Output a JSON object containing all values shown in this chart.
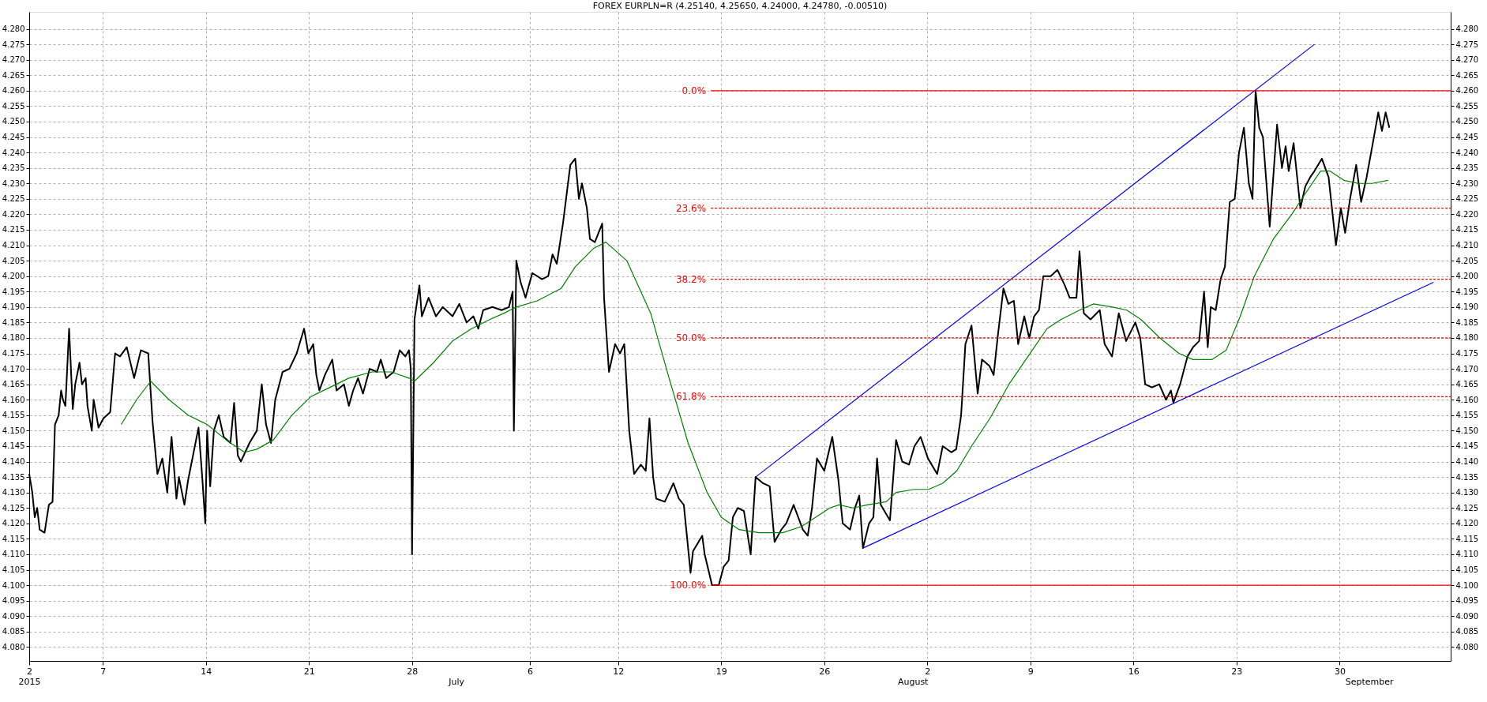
{
  "chart_data": {
    "type": "line",
    "title": "FOREX EURPLN=R (4.25140, 4.25650, 4.24000, 4.24780, -0.00510)",
    "xlim": [
      "2015-06-02T00:00",
      "2015-09-06T13:00"
    ],
    "ylim": [
      4.0755,
      4.2855
    ],
    "y2lim": [
      4.0755,
      4.2855
    ],
    "x2lim": [
      "2015-06-02T00:00",
      "2015-09-06T13:00"
    ],
    "xticks": [
      {
        "value": "2015-06-02",
        "label": "2"
      },
      {
        "value": "2015-06-07",
        "label": "7"
      },
      {
        "value": "2015-06-14",
        "label": "14"
      },
      {
        "value": "2015-06-21",
        "label": "21"
      },
      {
        "value": "2015-06-28",
        "label": "28"
      },
      {
        "value": "2015-07-06",
        "label": "6"
      },
      {
        "value": "2015-07-12",
        "label": "12"
      },
      {
        "value": "2015-07-19",
        "label": "19"
      },
      {
        "value": "2015-07-26",
        "label": "26"
      },
      {
        "value": "2015-08-02",
        "label": "2"
      },
      {
        "value": "2015-08-09",
        "label": "9"
      },
      {
        "value": "2015-08-16",
        "label": "16"
      },
      {
        "value": "2015-08-23",
        "label": "23"
      },
      {
        "value": "2015-08-30",
        "label": "30"
      }
    ],
    "x2ticks": [
      {
        "value": "2015-06-02",
        "label": "2015"
      },
      {
        "value": "2015-07-01",
        "label": "July"
      },
      {
        "value": "2015-08-01",
        "label": "August"
      },
      {
        "value": "2015-09-01",
        "label": "September"
      }
    ],
    "yticks": [
      {
        "value": 4.08,
        "label": "4.080"
      },
      {
        "value": 4.085,
        "label": "4.085"
      },
      {
        "value": 4.09,
        "label": "4.090"
      },
      {
        "value": 4.095,
        "label": "4.095"
      },
      {
        "value": 4.1,
        "label": "4.100"
      },
      {
        "value": 4.105,
        "label": "4.105"
      },
      {
        "value": 4.11,
        "label": "4.110"
      },
      {
        "value": 4.115,
        "label": "4.115"
      },
      {
        "value": 4.12,
        "label": "4.120"
      },
      {
        "value": 4.125,
        "label": "4.125"
      },
      {
        "value": 4.13,
        "label": "4.130"
      },
      {
        "value": 4.135,
        "label": "4.135"
      },
      {
        "value": 4.14,
        "label": "4.140"
      },
      {
        "value": 4.145,
        "label": "4.145"
      },
      {
        "value": 4.15,
        "label": "4.150"
      },
      {
        "value": 4.155,
        "label": "4.155"
      },
      {
        "value": 4.16,
        "label": "4.160"
      },
      {
        "value": 4.165,
        "label": "4.165"
      },
      {
        "value": 4.17,
        "label": "4.170"
      },
      {
        "value": 4.175,
        "label": "4.175"
      },
      {
        "value": 4.18,
        "label": "4.180"
      },
      {
        "value": 4.185,
        "label": "4.185"
      },
      {
        "value": 4.19,
        "label": "4.190"
      },
      {
        "value": 4.195,
        "label": "4.195"
      },
      {
        "value": 4.2,
        "label": "4.200"
      },
      {
        "value": 4.205,
        "label": "4.205"
      },
      {
        "value": 4.21,
        "label": "4.210"
      },
      {
        "value": 4.215,
        "label": "4.215"
      },
      {
        "value": 4.22,
        "label": "4.220"
      },
      {
        "value": 4.225,
        "label": "4.225"
      },
      {
        "value": 4.23,
        "label": "4.230"
      },
      {
        "value": 4.235,
        "label": "4.235"
      },
      {
        "value": 4.24,
        "label": "4.240"
      },
      {
        "value": 4.245,
        "label": "4.245"
      },
      {
        "value": 4.25,
        "label": "4.250"
      },
      {
        "value": 4.255,
        "label": "4.255"
      },
      {
        "value": 4.26,
        "label": "4.260"
      },
      {
        "value": 4.265,
        "label": "4.265"
      },
      {
        "value": 4.27,
        "label": "4.270"
      },
      {
        "value": 4.275,
        "label": "4.275"
      },
      {
        "value": 4.28,
        "label": "4.280"
      }
    ],
    "y2ticks": [
      {
        "value": 4.08,
        "label": "4.080"
      },
      {
        "value": 4.085,
        "label": "4.085"
      },
      {
        "value": 4.09,
        "label": "4.090"
      },
      {
        "value": 4.095,
        "label": "4.095"
      },
      {
        "value": 4.1,
        "label": "4.100"
      },
      {
        "value": 4.105,
        "label": "4.105"
      },
      {
        "value": 4.11,
        "label": "4.110"
      },
      {
        "value": 4.115,
        "label": "4.115"
      },
      {
        "value": 4.12,
        "label": "4.120"
      },
      {
        "value": 4.125,
        "label": "4.125"
      },
      {
        "value": 4.13,
        "label": "4.130"
      },
      {
        "value": 4.135,
        "label": "4.135"
      },
      {
        "value": 4.14,
        "label": "4.140"
      },
      {
        "value": 4.145,
        "label": "4.145"
      },
      {
        "value": 4.15,
        "label": "4.150"
      },
      {
        "value": 4.155,
        "label": "4.155"
      },
      {
        "value": 4.16,
        "label": "4.160"
      },
      {
        "value": 4.165,
        "label": "4.165"
      },
      {
        "value": 4.17,
        "label": "4.170"
      },
      {
        "value": 4.175,
        "label": "4.175"
      },
      {
        "value": 4.18,
        "label": "4.180"
      },
      {
        "value": 4.185,
        "label": "4.185"
      },
      {
        "value": 4.19,
        "label": "4.190"
      },
      {
        "value": 4.195,
        "label": "4.195"
      },
      {
        "value": 4.2,
        "label": "4.200"
      },
      {
        "value": 4.205,
        "label": "4.205"
      },
      {
        "value": 4.21,
        "label": "4.210"
      },
      {
        "value": 4.215,
        "label": "4.215"
      },
      {
        "value": 4.22,
        "label": "4.220"
      },
      {
        "value": 4.225,
        "label": "4.225"
      },
      {
        "value": 4.23,
        "label": "4.230"
      },
      {
        "value": 4.235,
        "label": "4.235"
      },
      {
        "value": 4.24,
        "label": "4.240"
      },
      {
        "value": 4.245,
        "label": "4.245"
      },
      {
        "value": 4.25,
        "label": "4.250"
      },
      {
        "value": 4.255,
        "label": "4.255"
      },
      {
        "value": 4.26,
        "label": "4.260"
      },
      {
        "value": 4.265,
        "label": "4.265"
      },
      {
        "value": 4.27,
        "label": "4.270"
      },
      {
        "value": 4.275,
        "label": "4.275"
      },
      {
        "value": 4.28,
        "label": "4.280"
      }
    ],
    "grid": true,
    "marker": "none",
    "line_style": "solid",
    "series": [
      {
        "color": "#000000",
        "x": [
          "2015-06-02T00:00",
          "2015-06-02T05:00",
          "2015-06-02T09:00",
          "2015-06-02T13:00",
          "2015-06-02T17:00",
          "2015-06-03T01:00",
          "2015-06-03T08:00",
          "2015-06-03T14:00",
          "2015-06-03T18:00",
          "2015-06-04T00:00",
          "2015-06-04T04:00",
          "2015-06-04T07:00",
          "2015-06-04T11:00",
          "2015-06-04T17:00",
          "2015-06-04T23:00",
          "2015-06-05T03:00",
          "2015-06-05T10:00",
          "2015-06-05T14:00",
          "2015-06-05T20:00",
          "2015-06-05T23:00",
          "2015-06-06T06:00",
          "2015-06-06T09:00",
          "2015-06-06T17:00",
          "2015-06-07T01:00",
          "2015-06-07T12:00",
          "2015-06-07T20:00",
          "2015-06-08T04:00",
          "2015-06-08T15:00",
          "2015-06-09T03:00",
          "2015-06-09T14:00",
          "2015-06-10T02:00",
          "2015-06-10T09:00",
          "2015-06-10T17:00",
          "2015-06-11T01:00",
          "2015-06-11T09:00",
          "2015-06-11T16:00",
          "2015-06-12T00:00",
          "2015-06-12T04:00",
          "2015-06-12T13:00",
          "2015-06-12T19:00",
          "2015-06-13T03:00",
          "2015-06-13T12:00",
          "2015-06-13T18:00",
          "2015-06-13T23:00",
          "2015-06-14T02:00",
          "2015-06-14T07:00",
          "2015-06-14T13:00",
          "2015-06-14T21:00",
          "2015-06-15T05:00",
          "2015-06-15T16:00",
          "2015-06-15T22:00",
          "2015-06-16T04:00",
          "2015-06-16T09:00",
          "2015-06-16T23:00",
          "2015-06-17T11:00",
          "2015-06-17T19:00",
          "2015-06-18T02:00",
          "2015-06-18T10:00",
          "2015-06-18T17:00",
          "2015-06-19T05:00",
          "2015-06-19T16:00",
          "2015-06-20T04:00",
          "2015-06-20T16:00",
          "2015-06-20T23:00",
          "2015-06-21T07:00",
          "2015-06-21T12:00",
          "2015-06-21T17:00",
          "2015-06-22T02:00",
          "2015-06-22T14:00",
          "2015-06-22T21:00",
          "2015-06-23T09:00",
          "2015-06-23T17:00",
          "2015-06-24T00:00",
          "2015-06-24T08:00",
          "2015-06-24T16:00",
          "2015-06-25T03:00",
          "2015-06-25T15:00",
          "2015-06-25T21:00",
          "2015-06-26T06:00",
          "2015-06-26T18:00",
          "2015-06-27T04:00",
          "2015-06-27T13:00",
          "2015-06-27T19:00",
          "2015-06-27T22:00",
          "2015-06-28T00:00",
          "2015-06-28T04:00",
          "2015-06-28T12:00",
          "2015-06-28T16:00",
          "2015-06-29T03:00",
          "2015-06-29T15:00",
          "2015-06-30T02:00",
          "2015-06-30T18:00",
          "2015-07-01T05:00",
          "2015-07-01T17:00",
          "2015-07-02T04:00",
          "2015-07-02T12:00",
          "2015-07-02T20:00",
          "2015-07-03T11:00",
          "2015-07-04T02:00",
          "2015-07-04T14:00",
          "2015-07-04T20:00",
          "2015-07-04T22:00",
          "2015-07-05T02:00",
          "2015-07-05T09:00",
          "2015-07-05T17:00",
          "2015-07-06T04:00",
          "2015-07-06T20:00",
          "2015-07-07T06:00",
          "2015-07-07T13:00",
          "2015-07-07T20:00",
          "2015-07-08T06:00",
          "2015-07-08T18:00",
          "2015-07-09T02:00",
          "2015-07-09T08:00",
          "2015-07-09T13:00",
          "2015-07-09T21:00",
          "2015-07-10T02:00",
          "2015-07-10T10:00",
          "2015-07-10T16:00",
          "2015-07-10T22:00",
          "2015-07-11T01:00",
          "2015-07-11T09:00",
          "2015-07-11T19:00",
          "2015-07-12T03:00",
          "2015-07-12T10:00",
          "2015-07-12T18:00",
          "2015-07-13T02:00",
          "2015-07-13T13:00",
          "2015-07-13T21:00",
          "2015-07-14T03:00",
          "2015-07-14T09:00",
          "2015-07-14T14:00",
          "2015-07-15T04:00",
          "2015-07-15T18:00",
          "2015-07-16T03:00",
          "2015-07-16T11:00",
          "2015-07-16T22:00",
          "2015-07-17T02:00",
          "2015-07-17T17:00",
          "2015-07-17T21:00",
          "2015-07-18T09:00",
          "2015-07-18T20:00",
          "2015-07-19T04:00",
          "2015-07-19T12:00",
          "2015-07-19T19:00",
          "2015-07-20T03:00",
          "2015-07-20T13:00",
          "2015-07-21T00:00",
          "2015-07-21T08:00",
          "2015-07-21T20:00",
          "2015-07-22T07:00",
          "2015-07-22T15:00",
          "2015-07-23T02:00",
          "2015-07-23T10:00",
          "2015-07-23T22:00",
          "2015-07-24T13:00",
          "2015-07-24T21:00",
          "2015-07-25T04:00",
          "2015-07-25T12:00",
          "2015-07-26T00:00",
          "2015-07-26T13:00",
          "2015-07-26T23:00",
          "2015-07-27T06:00",
          "2015-07-27T18:00",
          "2015-07-28T02:00",
          "2015-07-28T09:00",
          "2015-07-28T15:00",
          "2015-07-29T01:00",
          "2015-07-29T08:00",
          "2015-07-29T14:00",
          "2015-07-29T20:00",
          "2015-07-30T11:00",
          "2015-07-30T21:00",
          "2015-07-31T07:00",
          "2015-07-31T18:00",
          "2015-08-01T03:00",
          "2015-08-01T13:00",
          "2015-08-02T01:00",
          "2015-08-02T16:00",
          "2015-08-03T01:00",
          "2015-08-03T15:00",
          "2015-08-03T23:00",
          "2015-08-04T07:00",
          "2015-08-04T14:00",
          "2015-08-05T00:00",
          "2015-08-05T10:00",
          "2015-08-05T17:00",
          "2015-08-06T05:00",
          "2015-08-06T12:00",
          "2015-08-06T19:00",
          "2015-08-07T04:00",
          "2015-08-07T12:00",
          "2015-08-07T21:00",
          "2015-08-08T04:00",
          "2015-08-08T14:00",
          "2015-08-08T22:00",
          "2015-08-09T06:00",
          "2015-08-09T14:00",
          "2015-08-09T21:00",
          "2015-08-10T09:00",
          "2015-08-10T20:00",
          "2015-08-11T08:00",
          "2015-08-11T16:00",
          "2015-08-12T03:00",
          "2015-08-12T08:00",
          "2015-08-12T15:00",
          "2015-08-13T02:00",
          "2015-08-13T17:00",
          "2015-08-14T01:00",
          "2015-08-14T13:00",
          "2015-08-15T00:00",
          "2015-08-15T12:00",
          "2015-08-16T03:00",
          "2015-08-16T11:00",
          "2015-08-16T19:00",
          "2015-08-17T06:00",
          "2015-08-17T18:00",
          "2015-08-18T05:00",
          "2015-08-18T13:00",
          "2015-08-18T17:00",
          "2015-08-19T04:00",
          "2015-08-19T16:00",
          "2015-08-20T01:00",
          "2015-08-20T11:00",
          "2015-08-20T19:00",
          "2015-08-21T01:00",
          "2015-08-21T06:00",
          "2015-08-21T14:00",
          "2015-08-21T22:00",
          "2015-08-22T05:00",
          "2015-08-22T13:00",
          "2015-08-22T21:00",
          "2015-08-23T04:00",
          "2015-08-23T12:00",
          "2015-08-23T20:00",
          "2015-08-24T02:00",
          "2015-08-24T07:00",
          "2015-08-24T13:00",
          "2015-08-24T19:00",
          "2015-08-25T06:00",
          "2015-08-25T18:00",
          "2015-08-26T02:00",
          "2015-08-26T08:00",
          "2015-08-26T13:00",
          "2015-08-26T21:00",
          "2015-08-27T08:00",
          "2015-08-27T16:00",
          "2015-08-28T00:00",
          "2015-08-28T07:00",
          "2015-08-28T19:00",
          "2015-08-29T06:00",
          "2015-08-29T18:00",
          "2015-08-30T02:00",
          "2015-08-30T09:00",
          "2015-08-30T17:00",
          "2015-08-31T03:00",
          "2015-08-31T11:00",
          "2015-08-31T20:00",
          "2015-09-01T07:00",
          "2015-09-01T15:00",
          "2015-09-01T21:00",
          "2015-09-02T03:00",
          "2015-09-02T09:00"
        ],
        "values": [
          4.136,
          4.13,
          4.122,
          4.125,
          4.118,
          4.117,
          4.126,
          4.127,
          4.152,
          4.155,
          4.163,
          4.16,
          4.158,
          4.183,
          4.157,
          4.165,
          4.172,
          4.165,
          4.167,
          4.158,
          4.15,
          4.16,
          4.151,
          4.154,
          4.156,
          4.175,
          4.174,
          4.177,
          4.167,
          4.176,
          4.175,
          4.153,
          4.136,
          4.141,
          4.13,
          4.148,
          4.128,
          4.135,
          4.126,
          4.134,
          4.142,
          4.151,
          4.135,
          4.12,
          4.15,
          4.132,
          4.15,
          4.155,
          4.148,
          4.146,
          4.159,
          4.142,
          4.14,
          4.146,
          4.15,
          4.165,
          4.152,
          4.146,
          4.16,
          4.169,
          4.17,
          4.175,
          4.183,
          4.175,
          4.178,
          4.168,
          4.163,
          4.168,
          4.173,
          4.163,
          4.165,
          4.158,
          4.163,
          4.167,
          4.162,
          4.17,
          4.169,
          4.173,
          4.167,
          4.169,
          4.176,
          4.174,
          4.176,
          4.17,
          4.11,
          4.186,
          4.197,
          4.187,
          4.193,
          4.187,
          4.19,
          4.187,
          4.191,
          4.185,
          4.187,
          4.183,
          4.189,
          4.19,
          4.189,
          4.19,
          4.195,
          4.15,
          4.205,
          4.198,
          4.193,
          4.201,
          4.199,
          4.2,
          4.207,
          4.204,
          4.217,
          4.236,
          4.238,
          4.225,
          4.23,
          4.222,
          4.212,
          4.211,
          4.214,
          4.217,
          4.193,
          4.169,
          4.178,
          4.175,
          4.178,
          4.15,
          4.136,
          4.139,
          4.137,
          4.154,
          4.135,
          4.128,
          4.127,
          4.133,
          4.128,
          4.126,
          4.104,
          4.111,
          4.116,
          4.11,
          4.1,
          4.1,
          4.106,
          4.108,
          4.122,
          4.125,
          4.124,
          4.11,
          4.135,
          4.133,
          4.132,
          4.114,
          4.118,
          4.12,
          4.126,
          4.118,
          4.116,
          4.125,
          4.141,
          4.137,
          4.148,
          4.134,
          4.12,
          4.118,
          4.125,
          4.129,
          4.112,
          4.12,
          4.122,
          4.141,
          4.126,
          4.121,
          4.147,
          4.14,
          4.139,
          4.145,
          4.148,
          4.141,
          4.136,
          4.145,
          4.143,
          4.144,
          4.155,
          4.178,
          4.184,
          4.162,
          4.173,
          4.171,
          4.168,
          4.181,
          4.196,
          4.191,
          4.192,
          4.178,
          4.187,
          4.18,
          4.187,
          4.189,
          4.2,
          4.2,
          4.202,
          4.197,
          4.193,
          4.193,
          4.208,
          4.188,
          4.186,
          4.189,
          4.178,
          4.174,
          4.188,
          4.179,
          4.185,
          4.18,
          4.165,
          4.164,
          4.165,
          4.16,
          4.163,
          4.159,
          4.165,
          4.174,
          4.177,
          4.179,
          4.195,
          4.177,
          4.19,
          4.189,
          4.199,
          4.203,
          4.224,
          4.225,
          4.24,
          4.248,
          4.23,
          4.225,
          4.26,
          4.248,
          4.245,
          4.216,
          4.249,
          4.235,
          4.242,
          4.234,
          4.243,
          4.222,
          4.229,
          4.232,
          4.234,
          4.238,
          4.232,
          4.21,
          4.222,
          4.214,
          4.225,
          4.236,
          4.224,
          4.232,
          4.244,
          4.253,
          4.247,
          4.253,
          4.248
        ]
      },
      {
        "color": "#008000",
        "x": [
          "2015-06-08T06:00",
          "2015-06-09T07:00",
          "2015-06-10T06:00",
          "2015-06-11T12:00",
          "2015-06-12T19:00",
          "2015-06-14T02:00",
          "2015-06-15T09:00",
          "2015-06-16T15:00",
          "2015-06-17T11:00",
          "2015-06-18T14:00",
          "2015-06-19T20:00",
          "2015-06-21T03:00",
          "2015-06-22T10:00",
          "2015-06-23T17:00",
          "2015-06-25T07:00",
          "2015-06-26T14:00",
          "2015-06-27T19:00",
          "2015-06-28T04:00",
          "2015-06-29T11:00",
          "2015-06-30T18:00",
          "2015-07-02T01:00",
          "2015-07-03T07:00",
          "2015-07-04T06:00",
          "2015-07-05T02:00",
          "2015-07-06T12:00",
          "2015-07-08T03:00",
          "2015-07-09T02:00",
          "2015-07-10T08:00",
          "2015-07-11T04:00",
          "2015-07-12T14:00",
          "2015-07-14T05:00",
          "2015-07-15T11:00",
          "2015-07-16T18:00",
          "2015-07-18T01:00",
          "2015-07-19T00:00",
          "2015-07-20T05:00",
          "2015-07-21T14:00",
          "2015-07-23T04:00",
          "2015-07-24T11:00",
          "2015-07-25T10:00",
          "2015-07-26T09:00",
          "2015-07-27T00:00",
          "2015-07-27T23:00",
          "2015-07-28T22:00",
          "2015-07-30T05:00",
          "2015-07-30T21:00",
          "2015-08-01T03:00",
          "2015-08-02T02:00",
          "2015-08-03T01:00",
          "2015-08-04T00:00",
          "2015-08-05T00:00",
          "2015-08-06T06:00",
          "2015-08-07T13:00",
          "2015-08-08T20:00",
          "2015-08-10T03:00",
          "2015-08-11T02:00",
          "2015-08-12T08:00",
          "2015-08-13T07:00",
          "2015-08-14T14:00",
          "2015-08-15T13:00",
          "2015-08-16T12:00",
          "2015-08-17T19:00",
          "2015-08-19T02:00",
          "2015-08-20T01:00",
          "2015-08-21T08:00",
          "2015-08-22T07:00",
          "2015-08-23T06:00",
          "2015-08-24T05:00",
          "2015-08-25T12:00",
          "2015-08-26T18:00",
          "2015-08-27T17:00",
          "2015-08-28T17:00",
          "2015-08-29T08:00",
          "2015-08-30T07:00",
          "2015-08-31T06:00",
          "2015-09-01T05:00",
          "2015-09-02T07:00"
        ],
        "values": [
          4.152,
          4.16,
          4.166,
          4.16,
          4.155,
          4.152,
          4.147,
          4.143,
          4.144,
          4.147,
          4.155,
          4.161,
          4.164,
          4.167,
          4.169,
          4.169,
          4.167,
          4.166,
          4.172,
          4.179,
          4.183,
          4.186,
          4.188,
          4.19,
          4.192,
          4.196,
          4.203,
          4.209,
          4.211,
          4.205,
          4.188,
          4.167,
          4.146,
          4.13,
          4.122,
          4.118,
          4.117,
          4.117,
          4.119,
          4.122,
          4.125,
          4.126,
          4.125,
          4.126,
          4.127,
          4.13,
          4.131,
          4.131,
          4.133,
          4.137,
          4.145,
          4.154,
          4.165,
          4.174,
          4.183,
          4.186,
          4.189,
          4.191,
          4.19,
          4.189,
          4.186,
          4.18,
          4.175,
          4.173,
          4.173,
          4.176,
          4.187,
          4.2,
          4.212,
          4.22,
          4.227,
          4.234,
          4.234,
          4.231,
          4.23,
          4.23,
          4.231
        ]
      },
      {
        "color": "#0000ff",
        "x": [
          "2015-07-21T08:00",
          "2015-08-28T07:00"
        ],
        "values": [
          4.135,
          4.275
        ]
      },
      {
        "color": "#0000ff",
        "x": [
          "2015-07-28T15:00",
          "2015-09-05T09:00"
        ],
        "values": [
          4.112,
          4.198
        ]
      },
      {
        "name": "0.0%",
        "color": "#ff0000",
        "x": [
          "2015-07-18T07:00",
          "2015-09-06T13:00"
        ],
        "values": [
          4.26,
          4.26
        ]
      },
      {
        "name": "23.6%",
        "color": "#ff0000",
        "line_style": "dashed",
        "x": [
          "2015-07-18T07:00",
          "2015-09-06T13:00"
        ],
        "values": [
          4.222,
          4.222
        ]
      },
      {
        "name": "38.2%",
        "color": "#ff0000",
        "line_style": "dashed",
        "x": [
          "2015-07-18T07:00",
          "2015-09-06T13:00"
        ],
        "values": [
          4.199,
          4.199
        ]
      },
      {
        "name": "50.0%",
        "color": "#ff0000",
        "line_style": "dashed",
        "x": [
          "2015-07-18T07:00",
          "2015-09-06T13:00"
        ],
        "values": [
          4.18,
          4.18
        ]
      },
      {
        "name": "61.8%",
        "color": "#ff0000",
        "line_style": "dashed",
        "x": [
          "2015-07-18T07:00",
          "2015-09-06T13:00"
        ],
        "values": [
          4.161,
          4.161
        ]
      },
      {
        "name": "100.0%",
        "color": "#ff0000",
        "x": [
          "2015-07-18T07:00",
          "2015-09-06T13:00"
        ],
        "values": [
          4.1,
          4.1
        ]
      }
    ]
  }
}
